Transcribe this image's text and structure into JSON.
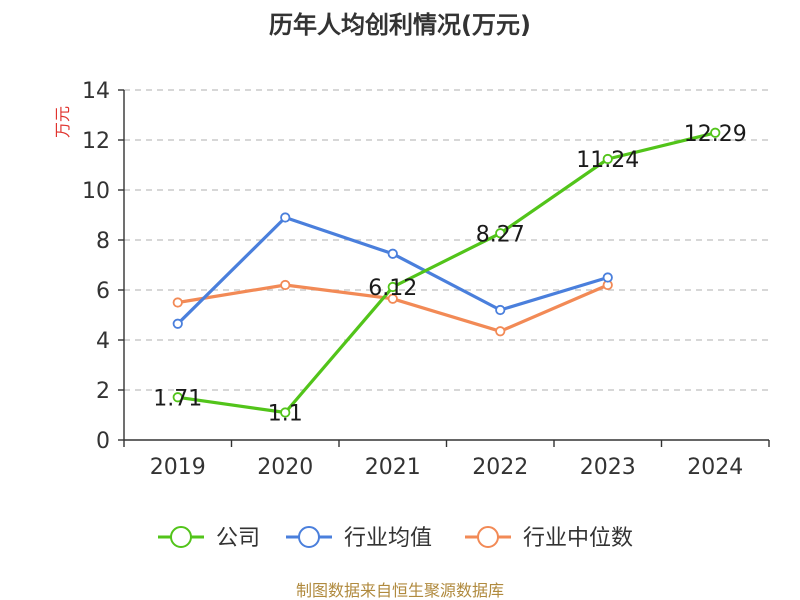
{
  "chart_data": {
    "type": "line",
    "title": "历年人均创利情况(万元)",
    "ylabel": "万元",
    "categories": [
      "2019",
      "2020",
      "2021",
      "2022",
      "2023",
      "2024"
    ],
    "ylim": [
      0,
      14
    ],
    "yticks": [
      0,
      2,
      4,
      6,
      8,
      10,
      12,
      14
    ],
    "grid": true,
    "legend_position": "bottom",
    "series": [
      {
        "name": "公司",
        "color": "#52c41a",
        "values": [
          1.71,
          1.1,
          6.12,
          8.27,
          11.24,
          12.29
        ],
        "labels": [
          "1.71",
          "1.1",
          "6.12",
          "8.27",
          "11.24",
          "12.29"
        ],
        "show_labels": true
      },
      {
        "name": "行业均值",
        "color": "#4a7fdc",
        "values": [
          4.65,
          8.9,
          7.45,
          5.2,
          6.5,
          null
        ],
        "show_labels": false
      },
      {
        "name": "行业中位数",
        "color": "#f28a56",
        "values": [
          5.5,
          6.2,
          5.65,
          4.35,
          6.2,
          null
        ],
        "show_labels": false
      }
    ]
  },
  "footer": "制图数据来自恒生聚源数据库"
}
